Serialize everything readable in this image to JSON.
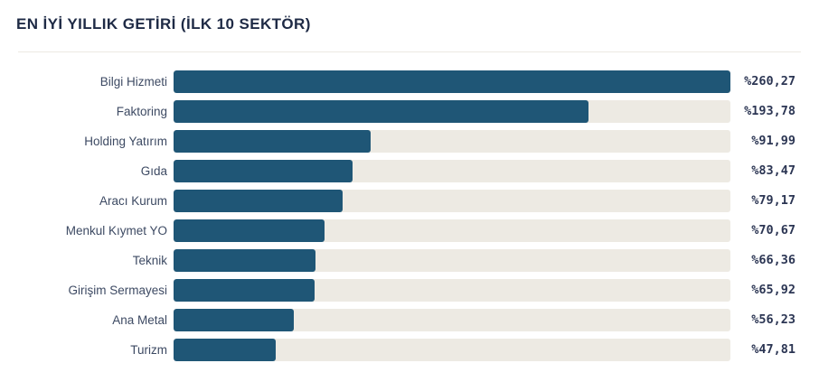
{
  "header": {
    "title": "EN İYİ YILLIK GETİRİ (İLK 10 SEKTÖR)"
  },
  "chart_data": {
    "type": "bar",
    "orientation": "horizontal",
    "title": "EN İYİ YILLIK GETİRİ (İLK 10 SEKTÖR)",
    "categories": [
      "Bilgi Hizmeti",
      "Faktoring",
      "Holding Yatırım",
      "Gıda",
      "Aracı Kurum",
      "Menkul Kıymet YO",
      "Teknik",
      "Girişim Sermayesi",
      "Ana Metal",
      "Turizm"
    ],
    "values": [
      260.27,
      193.78,
      91.99,
      83.47,
      79.17,
      70.67,
      66.36,
      65.92,
      56.23,
      47.81
    ],
    "value_labels": [
      "%260,27",
      "%193,78",
      "%91,99",
      "%83,47",
      "%79,17",
      "%70,67",
      "%66,36",
      "%65,92",
      "%56,23",
      "%47,81"
    ],
    "xlim": [
      0,
      260.27
    ],
    "grid": "off",
    "legend": "none",
    "bar_color": "#1f5676",
    "track_color": "#edeae3"
  }
}
